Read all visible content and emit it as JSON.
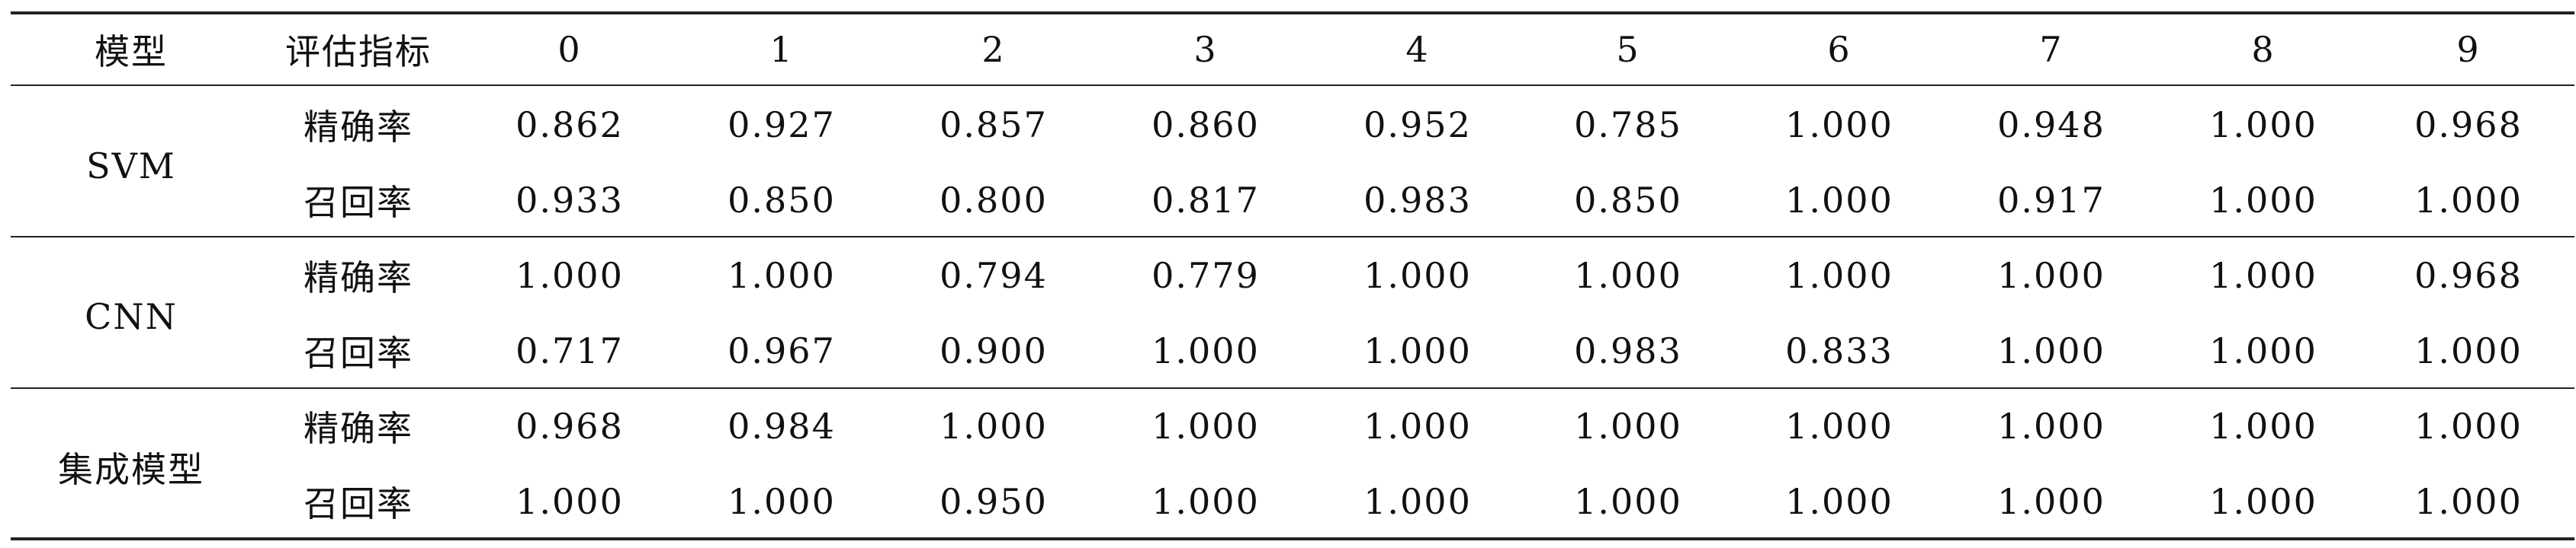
{
  "table": {
    "header": [
      "模型",
      "评估指标",
      "0",
      "1",
      "2",
      "3",
      "4",
      "5",
      "6",
      "7",
      "8",
      "9"
    ],
    "groups": [
      {
        "model": "SVM",
        "rows": [
          {
            "metric": "精确率",
            "values": [
              "0.862",
              "0.927",
              "0.857",
              "0.860",
              "0.952",
              "0.785",
              "1.000",
              "0.948",
              "1.000",
              "0.968"
            ]
          },
          {
            "metric": "召回率",
            "values": [
              "0.933",
              "0.850",
              "0.800",
              "0.817",
              "0.983",
              "0.850",
              "1.000",
              "0.917",
              "1.000",
              "1.000"
            ]
          }
        ]
      },
      {
        "model": "CNN",
        "rows": [
          {
            "metric": "精确率",
            "values": [
              "1.000",
              "1.000",
              "0.794",
              "0.779",
              "1.000",
              "1.000",
              "1.000",
              "1.000",
              "1.000",
              "0.968"
            ]
          },
          {
            "metric": "召回率",
            "values": [
              "0.717",
              "0.967",
              "0.900",
              "1.000",
              "1.000",
              "0.983",
              "0.833",
              "1.000",
              "1.000",
              "1.000"
            ]
          }
        ]
      },
      {
        "model": "集成模型",
        "rows": [
          {
            "metric": "精确率",
            "values": [
              "0.968",
              "0.984",
              "1.000",
              "1.000",
              "1.000",
              "1.000",
              "1.000",
              "1.000",
              "1.000",
              "1.000"
            ]
          },
          {
            "metric": "召回率",
            "values": [
              "1.000",
              "1.000",
              "0.950",
              "1.000",
              "1.000",
              "1.000",
              "1.000",
              "1.000",
              "1.000",
              "1.000"
            ]
          }
        ]
      }
    ]
  }
}
